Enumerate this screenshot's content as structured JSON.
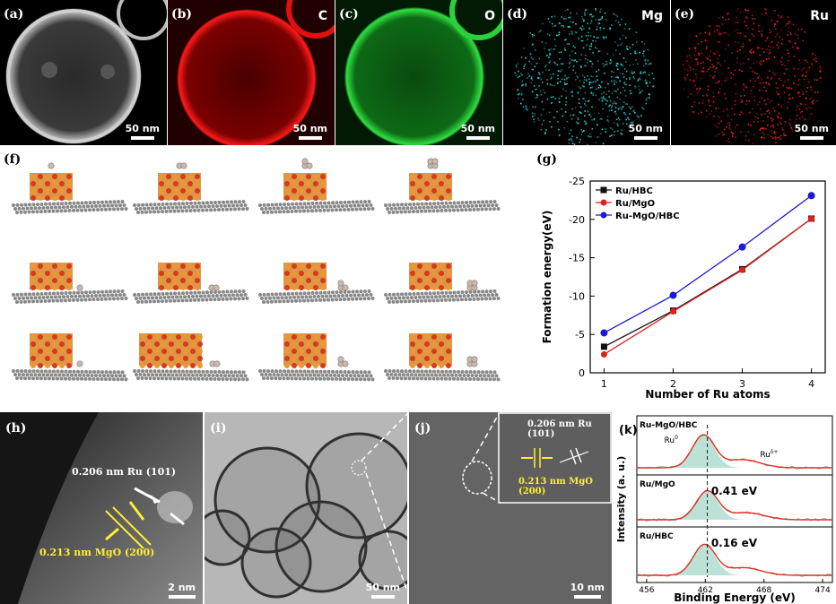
{
  "panels": {
    "a": {
      "label": "(a)",
      "scale": "50 nm"
    },
    "b": {
      "label": "(b)",
      "element": "C",
      "scale": "50 nm"
    },
    "c": {
      "label": "(c)",
      "element": "O",
      "scale": "50 nm"
    },
    "d": {
      "label": "(d)",
      "element": "Mg",
      "scale": "50 nm"
    },
    "e": {
      "label": "(e)",
      "element": "Ru",
      "scale": "50 nm"
    },
    "f": {
      "label": "(f)"
    },
    "g": {
      "label": "(g)"
    },
    "h": {
      "label": "(h)",
      "annot_ru": "0.206 nm Ru (101)",
      "annot_mgo": "0.213 nm MgO (200)",
      "scale": "2 nm"
    },
    "i": {
      "label": "(i)",
      "scale": "50 nm"
    },
    "j": {
      "label": "(j)",
      "inset_ru": "0.206 nm Ru (101)",
      "inset_mgo": "0.213 nm MgO (200)",
      "scale": "10 nm"
    },
    "k": {
      "label": "(k)",
      "ylabel": "Intensity (a. u.)",
      "xlabel": "Binding Energy (eV)",
      "xticks": [
        "456",
        "462",
        "468",
        "474"
      ],
      "traces": [
        {
          "name": "Ru-MgO/HBC",
          "peak1": "Ru0",
          "peak1_main": "Ru",
          "peak1_sup": "0",
          "peak2_main": "Ru",
          "peak2_sup": "δ+"
        },
        {
          "name": "Ru/MgO",
          "shift": "0.41 eV"
        },
        {
          "name": "Ru/HBC",
          "shift": "0.16 eV"
        }
      ]
    }
  },
  "chart_data": {
    "type": "line",
    "xlabel": "Number of Ru atoms",
    "ylabel": "Formation energy(eV)",
    "x": [
      1,
      2,
      3,
      4
    ],
    "xticks": [
      "1",
      "2",
      "3",
      "4"
    ],
    "yticks": [
      "-25",
      "-20",
      "-15",
      "-10",
      "-5",
      "0"
    ],
    "ylim": [
      -25,
      0
    ],
    "y_inverted": true,
    "series": [
      {
        "name": "Ru/HBC",
        "color": "#111111",
        "marker": "square",
        "values": [
          -3.4,
          -8.1,
          -13.5,
          -20.1
        ]
      },
      {
        "name": "Ru/MgO",
        "color": "#e02020",
        "marker": "circle",
        "values": [
          -2.4,
          -8.0,
          -13.4,
          -20.1
        ]
      },
      {
        "name": "Ru-MgO/HBC",
        "color": "#1a1ad0",
        "marker": "hexagon",
        "values": [
          -5.2,
          -10.1,
          -16.4,
          -23.1
        ]
      }
    ],
    "legend_position": "top-left"
  }
}
